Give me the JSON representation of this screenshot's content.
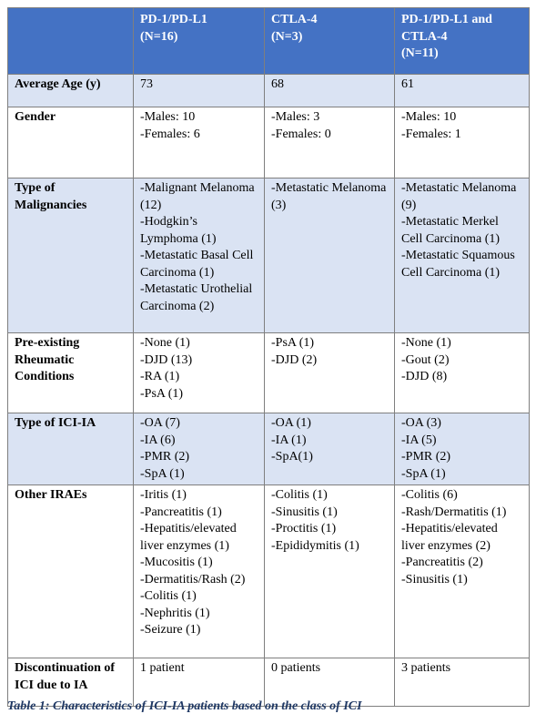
{
  "table": {
    "header": [
      [
        "PD-1/PD-L1",
        "(N=16)"
      ],
      [
        "CTLA-4",
        "(N=3)"
      ],
      [
        "PD-1/PD-L1 and CTLA-4",
        "(N=11)"
      ]
    ],
    "rows": [
      [
        "Average Age (y)",
        [
          "73"
        ],
        [
          "68"
        ],
        [
          "61"
        ]
      ],
      [
        "Gender",
        [
          "-Males: 10",
          "-Females: 6"
        ],
        [
          "-Males: 3",
          "-Females: 0"
        ],
        [
          "-Males: 10",
          "-Females: 1"
        ]
      ],
      [
        "Type of Malignancies",
        [
          "-Malignant Melanoma (12)",
          "-Hodgkin’s Lymphoma (1)",
          "-Metastatic Basal Cell Carcinoma (1)",
          "-Metastatic Urothelial Carcinoma (2)"
        ],
        [
          "-Metastatic Melanoma (3)"
        ],
        [
          "-Metastatic Melanoma (9)",
          "-Metastatic Merkel Cell Carcinoma (1)",
          "-Metastatic Squamous Cell Carcinoma (1)"
        ]
      ],
      [
        "Pre-existing Rheumatic Conditions",
        [
          "-None (1)",
          "-DJD (13)",
          "-RA (1)",
          "-PsA (1)"
        ],
        [
          "-PsA (1)",
          "-DJD (2)"
        ],
        [
          "-None (1)",
          "-Gout (2)",
          "-DJD (8)"
        ]
      ],
      [
        "Type of ICI-IA",
        [
          "-OA (7)",
          "-IA (6)",
          "-PMR (2)",
          "-SpA (1)"
        ],
        [
          "-OA (1)",
          "-IA (1)",
          "-SpA(1)"
        ],
        [
          "-OA (3)",
          "-IA (5)",
          "-PMR (2)",
          "-SpA (1)"
        ]
      ],
      [
        "Other IRAEs",
        [
          "-Iritis (1)",
          "-Pancreatitis (1)",
          "-Hepatitis/elevated liver enzymes (1)",
          "-Mucositis (1)",
          "-Dermatitis/Rash (2)",
          "-Colitis (1)",
          "-Nephritis (1)",
          "-Seizure (1)"
        ],
        [
          "-Colitis (1)",
          "-Sinusitis (1)",
          "-Proctitis (1)",
          "-Epididymitis (1)"
        ],
        [
          "-Colitis (6)",
          "-Rash/Dermatitis (1)",
          "-Hepatitis/elevated liver enzymes (2)",
          "-Pancreatitis (2)",
          "-Sinusitis (1)"
        ]
      ],
      [
        "Discontinuation of ICI due to IA",
        [
          "1 patient"
        ],
        [
          "0 patients"
        ],
        [
          "3 patients"
        ]
      ]
    ],
    "caption": "Table 1: Characteristics of ICI-IA patients based on the class of ICI"
  }
}
